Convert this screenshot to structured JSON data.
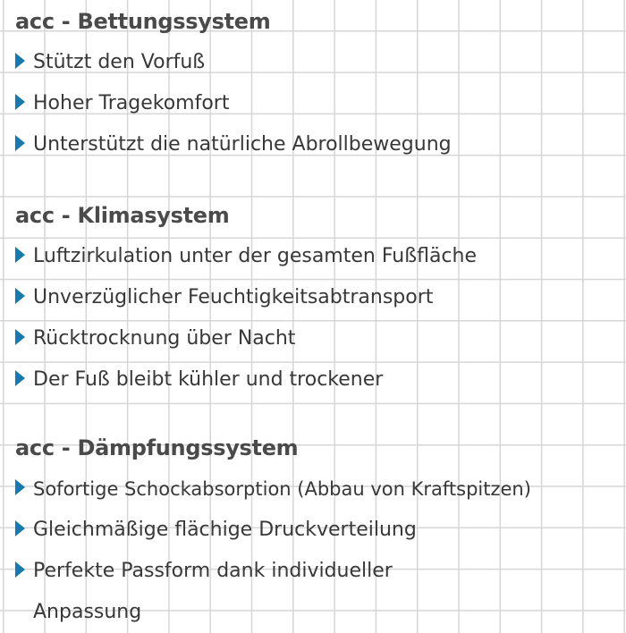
{
  "sections": [
    {
      "title": "acc - Bettungssystem",
      "items": [
        "Stützt den Vorfuß",
        "Hoher Tragekomfort",
        "Unterstützt die natürliche Abrollbewegung"
      ]
    },
    {
      "title": "acc - Klimasystem",
      "items": [
        "Luftzirkulation unter der gesamten Fußfläche",
        "Unverzüglicher Feuchtigkeitsabtransport",
        "Rücktrocknung über Nacht",
        "Der Fuß bleibt kühler und trockener"
      ]
    },
    {
      "title": "acc - Dämpfungssystem",
      "items": [
        "Sofortige Schockabsorption (Abbau von Kraftspitzen)",
        "Gleichmäßige flächige Druckverteilung",
        "Perfekte Passform dank individueller Anpassung"
      ]
    }
  ],
  "colors": {
    "bullet": "#1679b0",
    "text": "#383838",
    "grid": "#d6d6d6"
  },
  "icons": {
    "bullet": "triangle-right-icon"
  }
}
